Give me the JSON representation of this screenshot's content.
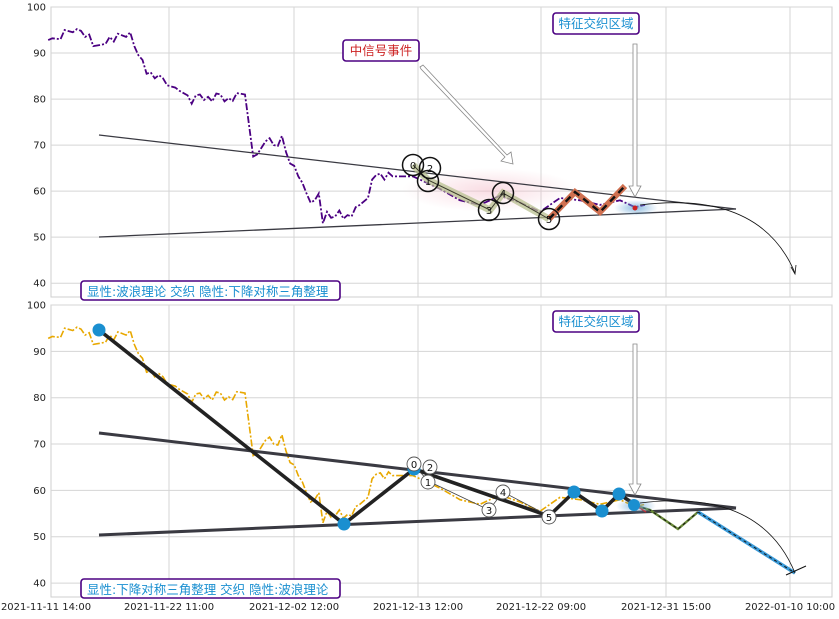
{
  "colors": {
    "top_price": "#4b0082",
    "bottom_price": "#e8a800",
    "triangle_line": "#3a3a42",
    "box_border": "#4b0082",
    "box_text_blue": "#1a8fd0",
    "box_text_red": "#cc2222",
    "wave_marker": "#1a8fd0",
    "zigzag_up": "#d07050",
    "grid": "#d5d5d5"
  },
  "chart_data": [
    {
      "type": "line",
      "panel": "top",
      "ylim": [
        37,
        100
      ],
      "x_ticks": [
        "2021-11-11 14:00",
        "2021-11-22 11:00",
        "2021-12-02 12:00",
        "2021-12-13 12:00",
        "2021-12-22 09:00",
        "2021-12-31 15:00",
        "2022-01-10 10:00"
      ],
      "y_ticks": [
        40,
        50,
        60,
        70,
        80,
        90,
        100
      ],
      "grid": true,
      "series": [
        {
          "style": "dash-dot",
          "points": [
            [
              0.02,
              92.8
            ],
            [
              0.03,
              93.2
            ],
            [
              0.05,
              93.0
            ],
            [
              0.06,
              95.0
            ],
            [
              0.08,
              94.5
            ],
            [
              0.09,
              95.2
            ],
            [
              0.1,
              94.8
            ],
            [
              0.11,
              93.5
            ],
            [
              0.12,
              94.0
            ],
            [
              0.13,
              91.5
            ],
            [
              0.15,
              91.8
            ],
            [
              0.16,
              92.0
            ],
            [
              0.17,
              93.5
            ],
            [
              0.18,
              92.5
            ],
            [
              0.19,
              94.2
            ],
            [
              0.21,
              93.5
            ],
            [
              0.22,
              94.5
            ],
            [
              0.23,
              91.5
            ],
            [
              0.24,
              89.5
            ],
            [
              0.25,
              88.5
            ],
            [
              0.26,
              85.5
            ],
            [
              0.27,
              85.8
            ],
            [
              0.28,
              84.5
            ],
            [
              0.29,
              85.2
            ],
            [
              0.3,
              84.5
            ],
            [
              0.31,
              83.0
            ],
            [
              0.33,
              82.5
            ],
            [
              0.34,
              81.8
            ],
            [
              0.36,
              80.8
            ],
            [
              0.37,
              79.0
            ],
            [
              0.38,
              80.8
            ],
            [
              0.39,
              81.0
            ],
            [
              0.4,
              79.8
            ],
            [
              0.41,
              80.5
            ],
            [
              0.42,
              79.5
            ],
            [
              0.43,
              81.2
            ],
            [
              0.44,
              81.0
            ],
            [
              0.45,
              79.5
            ],
            [
              0.46,
              80.2
            ],
            [
              0.47,
              79.6
            ],
            [
              0.48,
              81.3
            ],
            [
              0.5,
              81.0
            ],
            [
              0.52,
              67.5
            ],
            [
              0.53,
              68.0
            ],
            [
              0.55,
              70.8
            ],
            [
              0.56,
              71.5
            ],
            [
              0.57,
              70.0
            ],
            [
              0.58,
              69.8
            ],
            [
              0.59,
              72.0
            ],
            [
              0.6,
              68.5
            ],
            [
              0.61,
              66.0
            ],
            [
              0.62,
              65.5
            ],
            [
              0.63,
              63.2
            ],
            [
              0.64,
              61.8
            ],
            [
              0.65,
              59.5
            ],
            [
              0.66,
              57.5
            ],
            [
              0.67,
              58.0
            ],
            [
              0.68,
              59.5
            ],
            [
              0.69,
              53.0
            ],
            [
              0.7,
              55.5
            ],
            [
              0.71,
              54.2
            ],
            [
              0.72,
              54.5
            ],
            [
              0.73,
              55.8
            ],
            [
              0.74,
              54.0
            ],
            [
              0.75,
              54.8
            ],
            [
              0.76,
              54.5
            ],
            [
              0.77,
              56.5
            ],
            [
              0.78,
              57.0
            ],
            [
              0.8,
              58.5
            ],
            [
              0.81,
              62.5
            ],
            [
              0.82,
              63.5
            ],
            [
              0.83,
              63.8
            ],
            [
              0.84,
              62.5
            ],
            [
              0.85,
              64.0
            ],
            [
              0.86,
              63.2
            ]
          ]
        }
      ],
      "annotations": {
        "signal_event": "中信号事件",
        "feature_zone": "特征交织区域",
        "caption": "显性:波浪理论 交织 隐性:下降对称三角整理",
        "wave_labels": [
          "0",
          "2",
          "1",
          "3",
          "4",
          "5"
        ]
      }
    },
    {
      "type": "line",
      "panel": "bottom",
      "ylim": [
        37,
        100
      ],
      "x_ticks": [
        "2021-11-11 14:00",
        "2021-11-22 11:00",
        "2021-12-02 12:00",
        "2021-12-13 12:00",
        "2021-12-22 09:00",
        "2021-12-31 15:00",
        "2022-01-10 10:00"
      ],
      "y_ticks": [
        40,
        50,
        60,
        70,
        80,
        90,
        100
      ],
      "grid": true,
      "series": [
        {
          "style": "dash-dot",
          "points": []
        }
      ],
      "zigzag": [
        [
          95.2
        ],
        [
          52.3
        ],
        [
          64.2
        ],
        [
          54.5
        ],
        [
          59.3
        ],
        [
          55.3
        ],
        [
          59.0
        ],
        [
          56.5
        ]
      ],
      "annotations": {
        "feature_zone": "特征交织区域",
        "caption": "显性:下降对称三角整理 交织 隐性:波浪理论",
        "wave_labels": [
          "0",
          "2",
          "1",
          "3",
          "4",
          "5"
        ]
      }
    }
  ]
}
